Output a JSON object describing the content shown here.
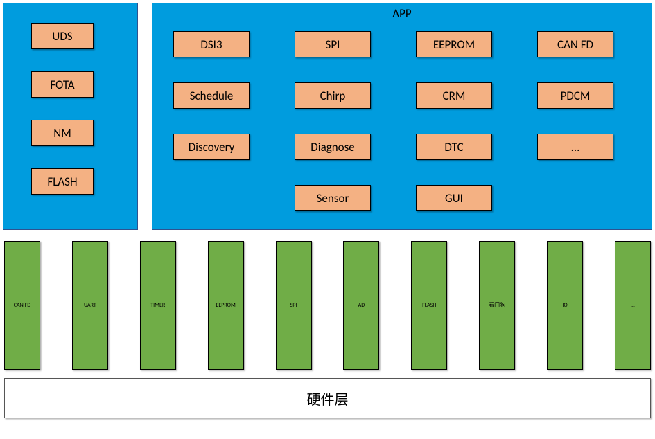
{
  "colors": {
    "panel_bg": "#009cde",
    "chip_bg": "#f4b183",
    "driver_bg": "#70ad47",
    "chip_border": "#000000",
    "panel_border": "#2f528f"
  },
  "left_panel": {
    "items": [
      {
        "label": "UDS"
      },
      {
        "label": "FOTA"
      },
      {
        "label": "NM"
      },
      {
        "label": "FLASH"
      }
    ]
  },
  "right_panel": {
    "title": "APP",
    "grid": [
      {
        "label": "DSI3"
      },
      {
        "label": "SPI"
      },
      {
        "label": "EEPROM"
      },
      {
        "label": "CAN FD"
      },
      {
        "label": "Schedule"
      },
      {
        "label": "Chirp"
      },
      {
        "label": "CRM"
      },
      {
        "label": "PDCM"
      },
      {
        "label": "Discovery"
      },
      {
        "label": "Diagnose"
      },
      {
        "label": "DTC"
      },
      {
        "label": "..."
      },
      {
        "label": "",
        "empty": true
      },
      {
        "label": "Sensor"
      },
      {
        "label": "GUI"
      },
      {
        "label": "",
        "empty": true
      }
    ]
  },
  "drivers": [
    {
      "label": "CAN FD"
    },
    {
      "label": "UART"
    },
    {
      "label": "TIMER"
    },
    {
      "label": "EEPROM"
    },
    {
      "label": "SPI"
    },
    {
      "label": "AD"
    },
    {
      "label": "FLASH"
    },
    {
      "label": "看门狗"
    },
    {
      "label": "IO"
    },
    {
      "label": "..."
    }
  ],
  "hardware_layer": {
    "label": "硬件层"
  }
}
